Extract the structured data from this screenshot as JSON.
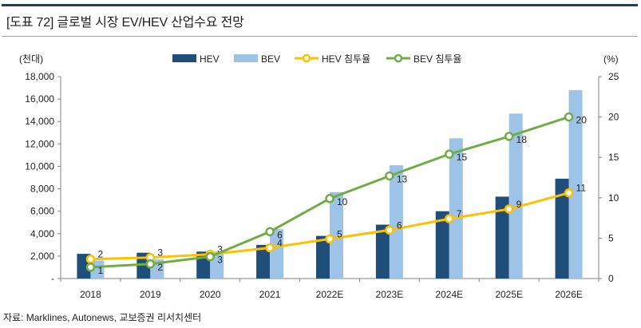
{
  "header": {
    "title": "[도표 72] 글로벌 시장 EV/HEV 산업수요 전망"
  },
  "source": "자료: Marklines, Autonews, 교보증권 리서치센터",
  "colors": {
    "hev": "#1f4e79",
    "bev": "#9dc3e6",
    "hev_rate": "#ffc000",
    "bev_rate": "#70ad47",
    "rule": "#1f3c6e"
  },
  "chart_data": {
    "type": "bar",
    "categories": [
      "2018",
      "2019",
      "2020",
      "2021",
      "2022E",
      "2023E",
      "2024E",
      "2025E",
      "2026E"
    ],
    "y_left_unit": "(천대)",
    "y_right_unit": "(%)",
    "y_left_ticks": [
      "-",
      "2,000",
      "4,000",
      "6,000",
      "8,000",
      "10,000",
      "12,000",
      "14,000",
      "16,000",
      "18,000"
    ],
    "y_right_ticks": [
      "0",
      "5",
      "10",
      "15",
      "20",
      "25"
    ],
    "ylim_left": [
      0,
      18000
    ],
    "ylim_right": [
      0,
      25
    ],
    "series": [
      {
        "name": "HEV",
        "type": "bar",
        "axis": "left",
        "values": [
          2200,
          2300,
          2400,
          3000,
          3800,
          4800,
          6000,
          7300,
          8900
        ]
      },
      {
        "name": "BEV",
        "type": "bar",
        "axis": "left",
        "values": [
          1600,
          1700,
          2400,
          4400,
          7700,
          10100,
          12500,
          14700,
          16800
        ]
      },
      {
        "name": "HEV 침투율",
        "type": "line",
        "axis": "right",
        "values": [
          2.4,
          2.6,
          3.0,
          3.8,
          4.9,
          6.0,
          7.4,
          8.6,
          10.6
        ],
        "labels": [
          "2",
          "3",
          "3",
          "4",
          "5",
          "6",
          "7",
          "9",
          "11"
        ]
      },
      {
        "name": "BEV 침투율",
        "type": "line",
        "axis": "right",
        "values": [
          1.4,
          1.8,
          2.7,
          5.8,
          9.9,
          12.7,
          15.4,
          17.6,
          20.0
        ],
        "labels": [
          "1",
          "2",
          "3",
          "6",
          "10",
          "13",
          "15",
          "18",
          "20"
        ]
      }
    ],
    "legend": {
      "position": "top",
      "items": [
        "HEV",
        "BEV",
        "HEV 침투율",
        "BEV 침투율"
      ]
    },
    "grid": false
  }
}
